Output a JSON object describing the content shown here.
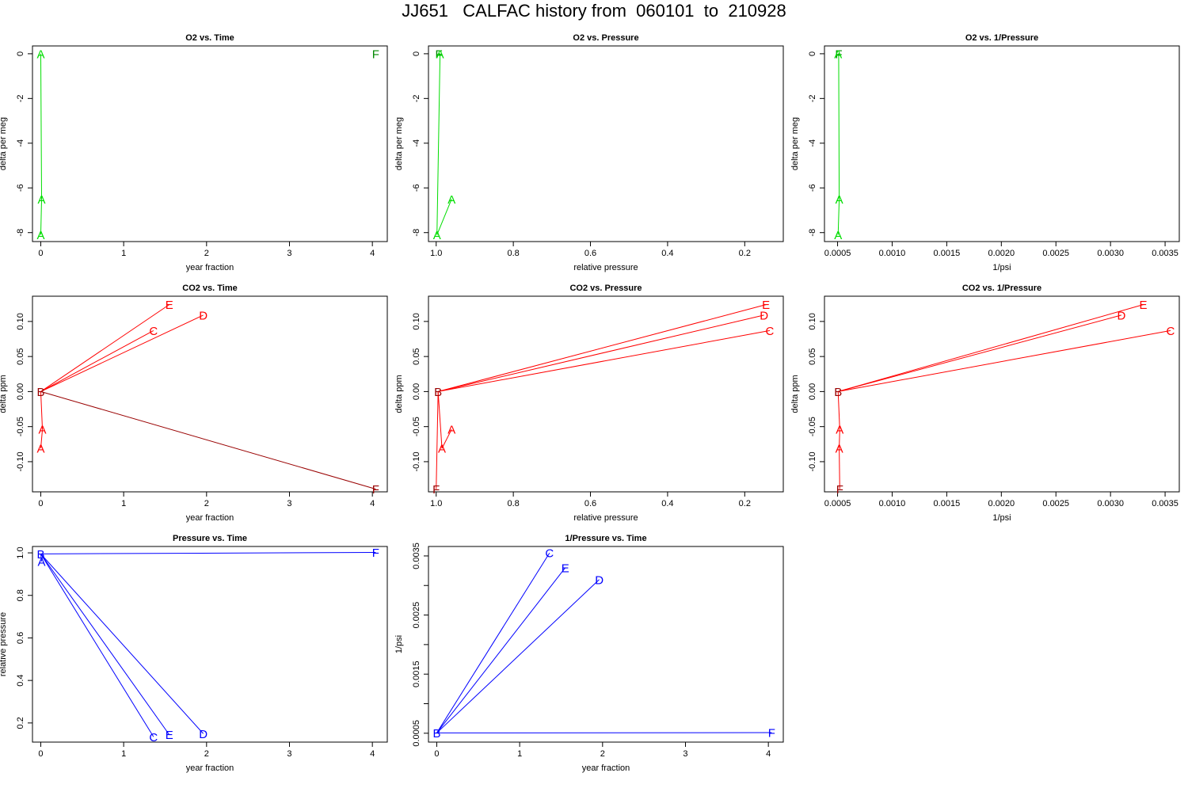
{
  "title": "JJ651   CALFAC history from  060101  to  210928",
  "colors": {
    "o2": "#00dd00",
    "o2_label": "#008800",
    "co2": "#ff0000",
    "co2_dark": "#990000",
    "pressure": "#0000ff"
  },
  "chart_data": [
    {
      "type": "line",
      "title": "O2 vs. Time",
      "xlabel": "year fraction",
      "ylabel": "delta per meg",
      "xlim": [
        -0.1,
        4.18
      ],
      "ylim": [
        -8.4,
        0.35
      ],
      "reverse_x": false,
      "xticks": [
        0,
        1,
        2,
        3,
        4
      ],
      "xtick_labels": [
        "0",
        "1",
        "2",
        "3",
        "4"
      ],
      "yticks": [
        0,
        -2,
        -4,
        -6,
        -8
      ],
      "ytick_labels": [
        "0",
        "-2",
        "-4",
        "-6",
        "-8"
      ],
      "color": "o2",
      "lines": [],
      "path": [
        [
          0.0,
          0.0
        ],
        [
          0.01,
          -6.5
        ],
        [
          0.0,
          -8.1
        ]
      ],
      "points": [
        {
          "label": "A",
          "x": 0.0,
          "y": 0.0,
          "color": "o2"
        },
        {
          "label": "A",
          "x": 0.01,
          "y": -6.5,
          "color": "o2"
        },
        {
          "label": "A",
          "x": 0.0,
          "y": -8.1,
          "color": "o2"
        },
        {
          "label": "F",
          "x": 4.04,
          "y": 0.0,
          "color": "o2_label"
        }
      ]
    },
    {
      "type": "line",
      "title": "O2 vs. Pressure",
      "xlabel": "relative pressure",
      "ylabel": "delta per meg",
      "xlim": [
        1.02,
        0.1
      ],
      "ylim": [
        -8.4,
        0.35
      ],
      "reverse_x": true,
      "xticks": [
        1.0,
        0.8,
        0.6,
        0.4,
        0.2
      ],
      "xtick_labels": [
        "1.0",
        "0.8",
        "0.6",
        "0.4",
        "0.2"
      ],
      "yticks": [
        0,
        -2,
        -4,
        -6,
        -8
      ],
      "ytick_labels": [
        "0",
        "-2",
        "-4",
        "-6",
        "-8"
      ],
      "color": "o2",
      "lines": [],
      "path": [
        [
          0.993,
          0.0
        ],
        [
          0.99,
          0.0
        ],
        [
          0.998,
          -8.1
        ],
        [
          0.96,
          -6.5
        ]
      ],
      "points": [
        {
          "label": "F",
          "x": 0.993,
          "y": 0.0,
          "color": "o2_label"
        },
        {
          "label": "A",
          "x": 0.99,
          "y": 0.0,
          "color": "o2"
        },
        {
          "label": "A",
          "x": 0.998,
          "y": -8.1,
          "color": "o2"
        },
        {
          "label": "A",
          "x": 0.96,
          "y": -6.5,
          "color": "o2"
        }
      ]
    },
    {
      "type": "line",
      "title": "O2 vs. 1/Pressure",
      "xlabel": "1/psi",
      "ylabel": "delta per meg",
      "xlim": [
        0.00038,
        0.00363
      ],
      "ylim": [
        -8.4,
        0.35
      ],
      "reverse_x": false,
      "xticks": [
        0.0005,
        0.001,
        0.0015,
        0.002,
        0.0025,
        0.003,
        0.0035
      ],
      "xtick_labels": [
        "0.0005",
        "0.0010",
        "0.0015",
        "0.0020",
        "0.0025",
        "0.0030",
        "0.0035"
      ],
      "yticks": [
        0,
        -2,
        -4,
        -6,
        -8
      ],
      "ytick_labels": [
        "0",
        "-2",
        "-4",
        "-6",
        "-8"
      ],
      "color": "o2",
      "lines": [],
      "path": [
        [
          0.000505,
          0.0
        ],
        [
          0.00051,
          0.0
        ],
        [
          0.000515,
          -6.5
        ],
        [
          0.000505,
          -8.1
        ]
      ],
      "points": [
        {
          "label": "F",
          "x": 0.00051,
          "y": 0.0,
          "color": "o2_label"
        },
        {
          "label": "A",
          "x": 0.000505,
          "y": 0.0,
          "color": "o2"
        },
        {
          "label": "A",
          "x": 0.000515,
          "y": -6.5,
          "color": "o2"
        },
        {
          "label": "A",
          "x": 0.000505,
          "y": -8.1,
          "color": "o2"
        }
      ]
    },
    {
      "type": "line",
      "title": "CO2 vs. Time",
      "xlabel": "year fraction",
      "ylabel": "delta ppm",
      "xlim": [
        -0.1,
        4.18
      ],
      "ylim": [
        -0.143,
        0.136
      ],
      "reverse_x": false,
      "xticks": [
        0,
        1,
        2,
        3,
        4
      ],
      "xtick_labels": [
        "0",
        "1",
        "2",
        "3",
        "4"
      ],
      "yticks": [
        0.1,
        0.05,
        0.0,
        -0.05,
        -0.1
      ],
      "ytick_labels": [
        "0.10",
        "0.05",
        "0.00",
        "-0.05",
        "-0.10"
      ],
      "color": "co2",
      "lines": [
        {
          "from": [
            0.0,
            0.0
          ],
          "to": [
            1.55,
            0.124
          ],
          "color": "co2"
        },
        {
          "from": [
            0.0,
            0.0
          ],
          "to": [
            1.36,
            0.087
          ],
          "color": "co2"
        },
        {
          "from": [
            0.0,
            0.0
          ],
          "to": [
            1.96,
            0.109
          ],
          "color": "co2"
        },
        {
          "from": [
            0.0,
            0.0
          ],
          "to": [
            4.04,
            -0.139
          ],
          "color": "co2_dark"
        },
        {
          "from": [
            0.0,
            0.0
          ],
          "to": [
            0.02,
            -0.054
          ],
          "color": "co2"
        },
        {
          "from": [
            0.02,
            -0.054
          ],
          "to": [
            0.0,
            -0.081
          ],
          "color": "co2"
        }
      ],
      "path": [],
      "points": [
        {
          "label": "E",
          "x": 1.55,
          "y": 0.124,
          "color": "co2"
        },
        {
          "label": "C",
          "x": 1.36,
          "y": 0.087,
          "color": "co2"
        },
        {
          "label": "D",
          "x": 1.96,
          "y": 0.109,
          "color": "co2"
        },
        {
          "label": "B",
          "x": 0.0,
          "y": 0.0,
          "color": "co2_dark"
        },
        {
          "label": "A",
          "x": 0.02,
          "y": -0.054,
          "color": "co2"
        },
        {
          "label": "A",
          "x": 0.0,
          "y": -0.081,
          "color": "co2"
        },
        {
          "label": "F",
          "x": 4.04,
          "y": -0.139,
          "color": "co2_dark"
        }
      ]
    },
    {
      "type": "line",
      "title": "CO2 vs. Pressure",
      "xlabel": "relative pressure",
      "ylabel": "delta ppm",
      "xlim": [
        1.02,
        0.1
      ],
      "ylim": [
        -0.143,
        0.136
      ],
      "reverse_x": true,
      "xticks": [
        1.0,
        0.8,
        0.6,
        0.4,
        0.2
      ],
      "xtick_labels": [
        "1.0",
        "0.8",
        "0.6",
        "0.4",
        "0.2"
      ],
      "yticks": [
        0.1,
        0.05,
        0.0,
        -0.05,
        -0.1
      ],
      "ytick_labels": [
        "0.10",
        "0.05",
        "0.00",
        "-0.05",
        "-0.10"
      ],
      "color": "co2",
      "lines": [
        {
          "from": [
            0.995,
            0.0
          ],
          "to": [
            0.145,
            0.124
          ],
          "color": "co2"
        },
        {
          "from": [
            0.995,
            0.0
          ],
          "to": [
            0.15,
            0.109
          ],
          "color": "co2"
        },
        {
          "from": [
            0.995,
            0.0
          ],
          "to": [
            0.135,
            0.087
          ],
          "color": "co2"
        },
        {
          "from": [
            0.995,
            0.0
          ],
          "to": [
            1.0,
            -0.139
          ],
          "color": "co2"
        },
        {
          "from": [
            0.995,
            0.0
          ],
          "to": [
            0.985,
            -0.081
          ],
          "color": "co2"
        },
        {
          "from": [
            0.985,
            -0.081
          ],
          "to": [
            0.96,
            -0.054
          ],
          "color": "co2"
        }
      ],
      "path": [],
      "points": [
        {
          "label": "E",
          "x": 0.145,
          "y": 0.124,
          "color": "co2"
        },
        {
          "label": "D",
          "x": 0.15,
          "y": 0.109,
          "color": "co2"
        },
        {
          "label": "C",
          "x": 0.135,
          "y": 0.087,
          "color": "co2"
        },
        {
          "label": "B",
          "x": 0.995,
          "y": 0.0,
          "color": "co2_dark"
        },
        {
          "label": "A",
          "x": 0.96,
          "y": -0.054,
          "color": "co2"
        },
        {
          "label": "A",
          "x": 0.985,
          "y": -0.081,
          "color": "co2"
        },
        {
          "label": "F",
          "x": 1.0,
          "y": -0.139,
          "color": "co2_dark"
        }
      ]
    },
    {
      "type": "line",
      "title": "CO2 vs. 1/Pressure",
      "xlabel": "1/psi",
      "ylabel": "delta ppm",
      "xlim": [
        0.00038,
        0.00363
      ],
      "ylim": [
        -0.143,
        0.136
      ],
      "reverse_x": false,
      "xticks": [
        0.0005,
        0.001,
        0.0015,
        0.002,
        0.0025,
        0.003,
        0.0035
      ],
      "xtick_labels": [
        "0.0005",
        "0.0010",
        "0.0015",
        "0.0020",
        "0.0025",
        "0.0030",
        "0.0035"
      ],
      "yticks": [
        0.1,
        0.05,
        0.0,
        -0.05,
        -0.1
      ],
      "ytick_labels": [
        "0.10",
        "0.05",
        "0.00",
        "-0.05",
        "-0.10"
      ],
      "color": "co2",
      "lines": [
        {
          "from": [
            0.000505,
            0.0
          ],
          "to": [
            0.0033,
            0.124
          ],
          "color": "co2"
        },
        {
          "from": [
            0.000505,
            0.0
          ],
          "to": [
            0.0031,
            0.109
          ],
          "color": "co2"
        },
        {
          "from": [
            0.000505,
            0.0
          ],
          "to": [
            0.00355,
            0.087
          ],
          "color": "co2"
        },
        {
          "from": [
            0.000505,
            0.0
          ],
          "to": [
            0.00052,
            -0.054
          ],
          "color": "co2"
        },
        {
          "from": [
            0.00052,
            -0.054
          ],
          "to": [
            0.000515,
            -0.081
          ],
          "color": "co2"
        },
        {
          "from": [
            0.000515,
            -0.081
          ],
          "to": [
            0.00052,
            -0.139
          ],
          "color": "co2"
        }
      ],
      "path": [],
      "points": [
        {
          "label": "E",
          "x": 0.0033,
          "y": 0.124,
          "color": "co2"
        },
        {
          "label": "D",
          "x": 0.0031,
          "y": 0.109,
          "color": "co2"
        },
        {
          "label": "C",
          "x": 0.00355,
          "y": 0.087,
          "color": "co2"
        },
        {
          "label": "B",
          "x": 0.000505,
          "y": 0.0,
          "color": "co2_dark"
        },
        {
          "label": "A",
          "x": 0.00052,
          "y": -0.054,
          "color": "co2"
        },
        {
          "label": "A",
          "x": 0.000515,
          "y": -0.081,
          "color": "co2"
        },
        {
          "label": "F",
          "x": 0.00052,
          "y": -0.139,
          "color": "co2_dark"
        }
      ]
    },
    {
      "type": "line",
      "title": "Pressure vs. Time",
      "xlabel": "year fraction",
      "ylabel": "relative pressure",
      "xlim": [
        -0.1,
        4.18
      ],
      "ylim": [
        0.11,
        1.03
      ],
      "reverse_x": false,
      "xticks": [
        0,
        1,
        2,
        3,
        4
      ],
      "xtick_labels": [
        "0",
        "1",
        "2",
        "3",
        "4"
      ],
      "yticks": [
        1.0,
        0.8,
        0.6,
        0.4,
        0.2
      ],
      "ytick_labels": [
        "1.0",
        "0.8",
        "0.6",
        "0.4",
        "0.2"
      ],
      "color": "pressure",
      "lines": [
        {
          "from": [
            0.0,
            0.995
          ],
          "to": [
            4.04,
            1.002
          ],
          "color": "pressure"
        },
        {
          "from": [
            0.0,
            0.995
          ],
          "to": [
            1.36,
            0.135
          ],
          "color": "pressure"
        },
        {
          "from": [
            0.0,
            0.995
          ],
          "to": [
            1.55,
            0.145
          ],
          "color": "pressure"
        },
        {
          "from": [
            0.0,
            0.995
          ],
          "to": [
            1.96,
            0.15
          ],
          "color": "pressure"
        },
        {
          "from": [
            0.0,
            0.995
          ],
          "to": [
            0.01,
            0.96
          ],
          "color": "pressure"
        }
      ],
      "path": [],
      "points": [
        {
          "label": "B",
          "x": 0.0,
          "y": 0.995,
          "color": "pressure"
        },
        {
          "label": "A",
          "x": 0.01,
          "y": 0.96,
          "color": "pressure"
        },
        {
          "label": "F",
          "x": 4.04,
          "y": 1.002,
          "color": "pressure"
        },
        {
          "label": "C",
          "x": 1.36,
          "y": 0.135,
          "color": "pressure"
        },
        {
          "label": "E",
          "x": 1.55,
          "y": 0.145,
          "color": "pressure"
        },
        {
          "label": "D",
          "x": 1.96,
          "y": 0.15,
          "color": "pressure"
        }
      ]
    },
    {
      "type": "line",
      "title": "1/Pressure vs. Time",
      "xlabel": "year fraction",
      "ylabel": "1/psi",
      "xlim": [
        -0.1,
        4.18
      ],
      "ylim": [
        0.00035,
        0.00366
      ],
      "reverse_x": false,
      "xticks": [
        0,
        1,
        2,
        3,
        4
      ],
      "xtick_labels": [
        "0",
        "1",
        "2",
        "3",
        "4"
      ],
      "yticks": [
        0.0035,
        0.0025,
        0.0015,
        0.0005
      ],
      "ytick_labels": [
        "0.0035",
        "0.0025",
        "0.0015",
        "0.0005"
      ],
      "minor_yticks": [
        0.003,
        0.002,
        0.001
      ],
      "color": "pressure",
      "lines": [
        {
          "from": [
            0.0,
            0.000505
          ],
          "to": [
            1.36,
            0.00355
          ],
          "color": "pressure"
        },
        {
          "from": [
            0.0,
            0.000505
          ],
          "to": [
            1.55,
            0.0033
          ],
          "color": "pressure"
        },
        {
          "from": [
            0.0,
            0.000505
          ],
          "to": [
            1.96,
            0.0031
          ],
          "color": "pressure"
        },
        {
          "from": [
            0.0,
            0.000505
          ],
          "to": [
            4.04,
            0.00051
          ],
          "color": "pressure"
        }
      ],
      "path": [],
      "points": [
        {
          "label": "C",
          "x": 1.36,
          "y": 0.00355,
          "color": "pressure"
        },
        {
          "label": "E",
          "x": 1.55,
          "y": 0.0033,
          "color": "pressure"
        },
        {
          "label": "D",
          "x": 1.96,
          "y": 0.0031,
          "color": "pressure"
        },
        {
          "label": "B",
          "x": 0.0,
          "y": 0.000505,
          "color": "pressure"
        },
        {
          "label": "F",
          "x": 4.04,
          "y": 0.00051,
          "color": "pressure"
        }
      ]
    }
  ]
}
